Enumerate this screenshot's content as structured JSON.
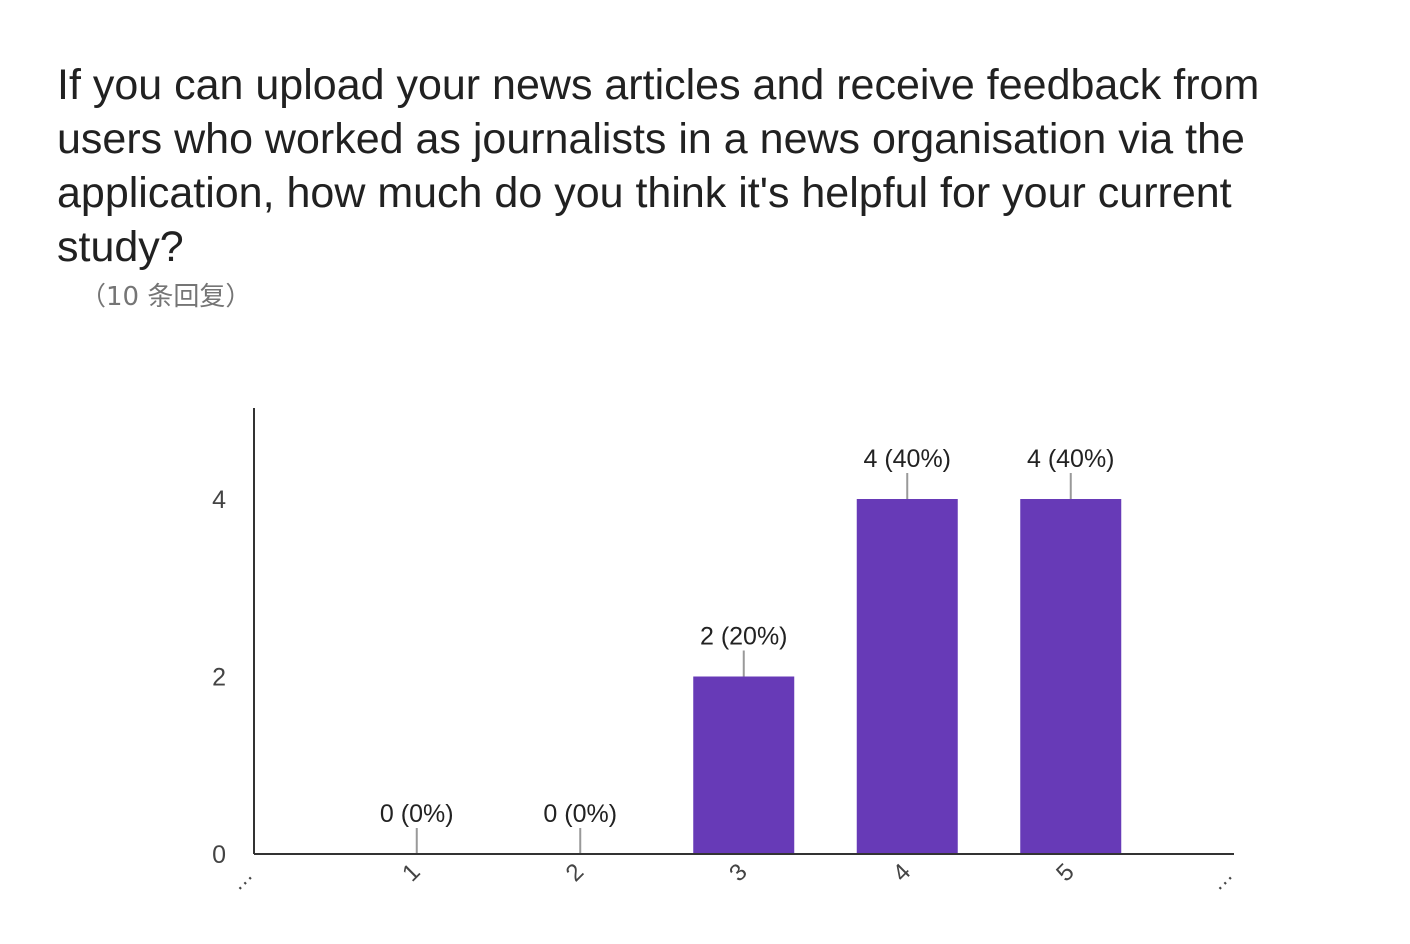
{
  "question": {
    "title": "If you can upload your news articles and receive feedback from users who worked as journalists in a news organisation via the application, how much do you think it's helpful for your current study?",
    "responses": "（10 条回复）"
  },
  "colors": {
    "bar": "#673ab7",
    "axis": "#333333",
    "tick_text": "#444444",
    "label_text": "#222222",
    "leader": "#999999"
  },
  "chart_data": {
    "type": "bar",
    "categories": [
      "1",
      "2",
      "3",
      "4",
      "5"
    ],
    "values": [
      0,
      0,
      2,
      4,
      4
    ],
    "data_labels": [
      "0 (0%)",
      "0 (0%)",
      "2 (20%)",
      "4 (40%)",
      "4 (40%)"
    ],
    "y_ticks": [
      0,
      2,
      4
    ],
    "ylim": [
      0,
      5
    ],
    "x_ellipsis": "…",
    "grid": false,
    "legend": "none"
  }
}
